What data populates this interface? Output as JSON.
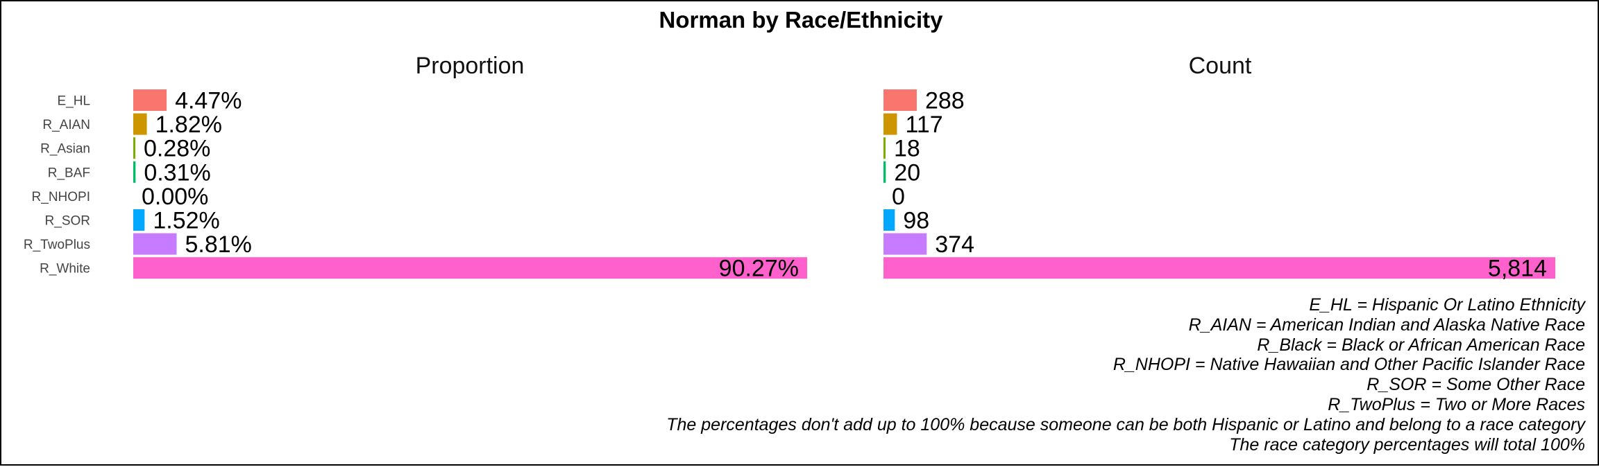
{
  "title": "Norman by Race/Ethnicity",
  "chart_data": [
    {
      "type": "bar",
      "orientation": "horizontal",
      "title": "Proportion",
      "categories": [
        "E_HL",
        "R_AIAN",
        "R_Asian",
        "R_BAF",
        "R_NHOPI",
        "R_SOR",
        "R_TwoPlus",
        "R_White"
      ],
      "values": [
        4.47,
        1.82,
        0.28,
        0.31,
        0.0,
        1.52,
        5.81,
        90.27
      ],
      "labels": [
        "4.47%",
        "1.82%",
        "0.28%",
        "0.31%",
        "0.00%",
        "1.52%",
        "5.81%",
        "90.27%"
      ],
      "unit": "%",
      "xlim": [
        0,
        90.27
      ],
      "colors": [
        "#F8766D",
        "#CD9600",
        "#7CAE00",
        "#00BE67",
        "#00BFC4",
        "#00A9FF",
        "#C77CFF",
        "#FF61CC"
      ],
      "grid": false,
      "axes_visible": false
    },
    {
      "type": "bar",
      "orientation": "horizontal",
      "title": "Count",
      "categories": [
        "E_HL",
        "R_AIAN",
        "R_Asian",
        "R_BAF",
        "R_NHOPI",
        "R_SOR",
        "R_TwoPlus",
        "R_White"
      ],
      "values": [
        288,
        117,
        18,
        20,
        0,
        98,
        374,
        5814
      ],
      "labels": [
        "288",
        "117",
        "18",
        "20",
        "0",
        "98",
        "374",
        "5,814"
      ],
      "xlim": [
        0,
        5814
      ],
      "colors": [
        "#F8766D",
        "#CD9600",
        "#7CAE00",
        "#00BE67",
        "#00BFC4",
        "#00A9FF",
        "#C77CFF",
        "#FF61CC"
      ],
      "grid": false,
      "axes_visible": false
    }
  ],
  "notes": [
    "E_HL = Hispanic Or Latino Ethnicity",
    "R_AIAN = American Indian and Alaska Native Race",
    "R_Black = Black or African American Race",
    "R_NHOPI = Native Hawaiian and Other Pacific Islander Race",
    "R_SOR = Some Other Race",
    "R_TwoPlus = Two or More Races",
    "The percentages don't add up to 100% because someone can be both Hispanic or Latino and belong to a race category",
    "The race category percentages will total 100%"
  ]
}
